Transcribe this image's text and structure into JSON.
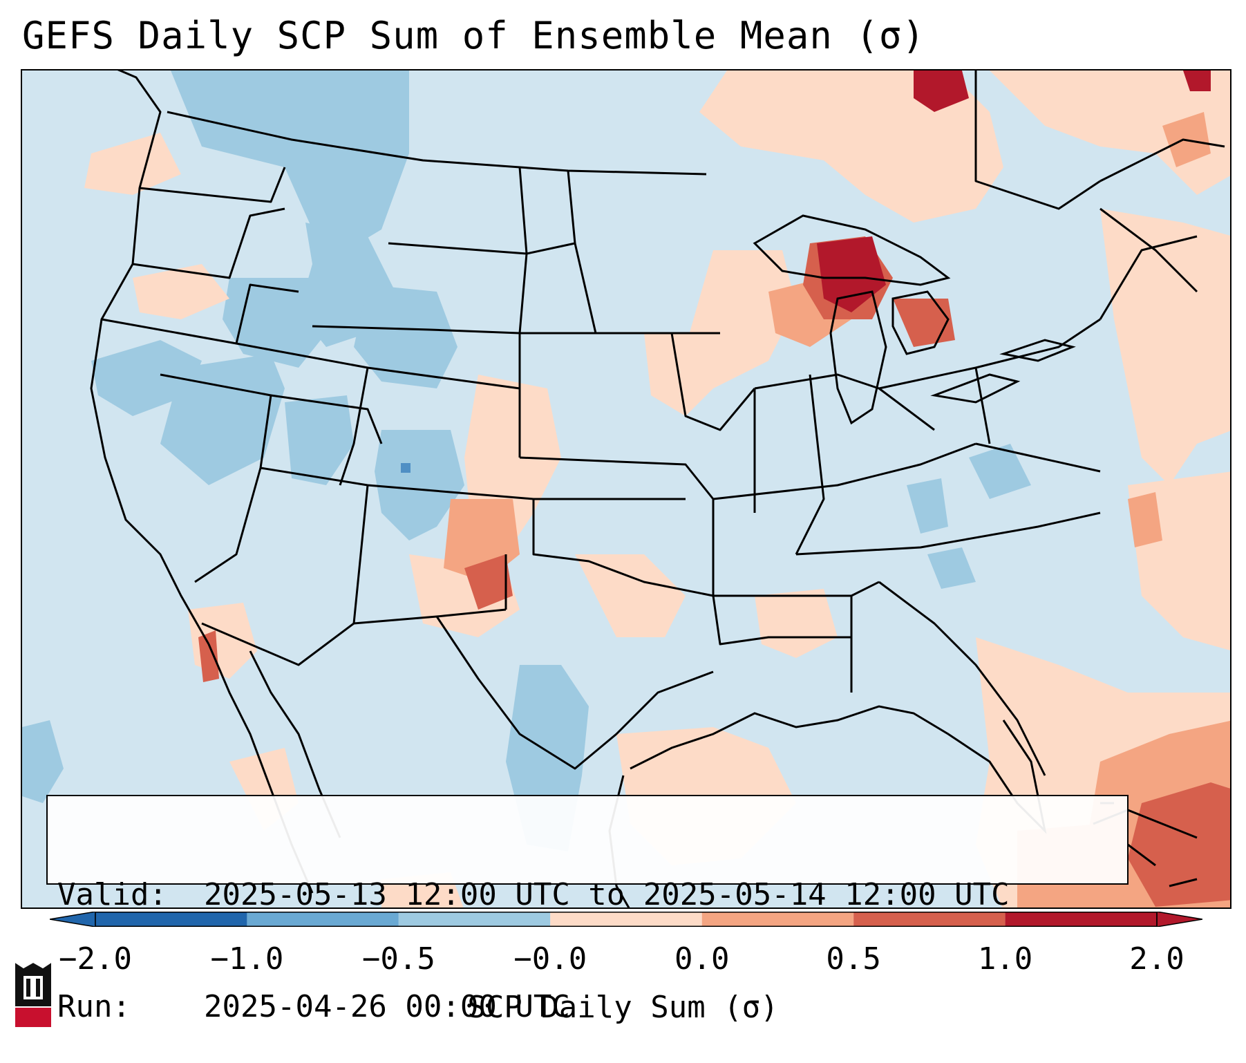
{
  "title": "GEFS Daily SCP Sum of Ensemble Mean (σ)",
  "info": {
    "valid_label": "Valid:",
    "valid_value": "2025-05-13 12:00 UTC to 2025-05-14 12:00 UTC",
    "run_label": "Run:",
    "run_value": "2025-04-26 00:00 UTC"
  },
  "colorbar": {
    "title": "SCP Daily Sum (σ)",
    "ticks": [
      "−2.0",
      "−1.0",
      "−0.5",
      "−0.0",
      "0.0",
      "0.5",
      "1.0",
      "2.0"
    ],
    "colors": [
      "#2166ac",
      "#6aa9d3",
      "#9ecae1",
      "#d1e5f0",
      "#fddbc7",
      "#f4a582",
      "#d6604d",
      "#b2182b"
    ],
    "extend": "both"
  },
  "map": {
    "projection": "Lambert conformal, CONUS",
    "background_category_color": "#d1e5f0",
    "features": [
      "state-borders",
      "coastlines",
      "country-borders",
      "great-lakes"
    ]
  },
  "logo": {
    "text": "NIU",
    "color": "#c8102e"
  }
}
